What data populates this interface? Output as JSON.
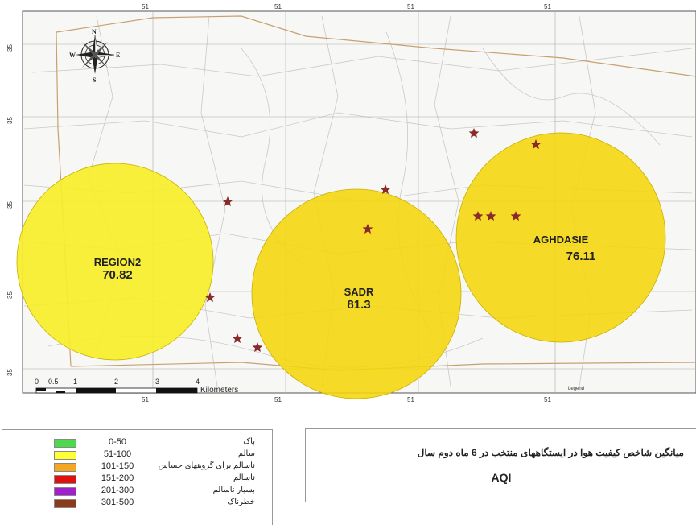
{
  "map": {
    "top_ticks": [
      "51",
      "51",
      "51",
      "51"
    ],
    "bottom_ticks": [
      "51",
      "51",
      "51",
      "51"
    ],
    "left_ticks": [
      "35",
      "35",
      "35",
      "35",
      "35"
    ],
    "scale_labels": [
      "0",
      "0.5",
      "1",
      "2",
      "3",
      "4"
    ],
    "scale_unit": "Kilometers",
    "legend_word": "Legend",
    "compass": {
      "n": "N",
      "s": "S",
      "e": "E",
      "w": "W"
    },
    "circle_color": "#f5d60a",
    "circle_light_color": "#f7ee2a",
    "star_color": "#8a2a2a"
  },
  "stations": [
    {
      "name": "REGION2",
      "value": "70.82"
    },
    {
      "name": "SADR",
      "value": "81.3"
    },
    {
      "name": "AGHDASIE",
      "value": "76.11"
    }
  ],
  "legend": [
    {
      "range": "0-50",
      "label": "پاک",
      "color": "#4cd94c"
    },
    {
      "range": "51-100",
      "label": "سالم",
      "color": "#ffff33"
    },
    {
      "range": "101-150",
      "label": "ناسالم برای گروههای حساس",
      "color": "#f5a623"
    },
    {
      "range": "151-200",
      "label": "ناسالم",
      "color": "#e01010"
    },
    {
      "range": "201-300",
      "label": "بسیار ناسالم",
      "color": "#a020d0"
    },
    {
      "range": "301-500",
      "label": "خطرناک",
      "color": "#8b3a1a"
    }
  ],
  "title": {
    "text": "میانگین شاخص کیفیت  هوا در ایستگاههای منتخب در 6 ماه دوم سال",
    "aqi": "AQI"
  }
}
